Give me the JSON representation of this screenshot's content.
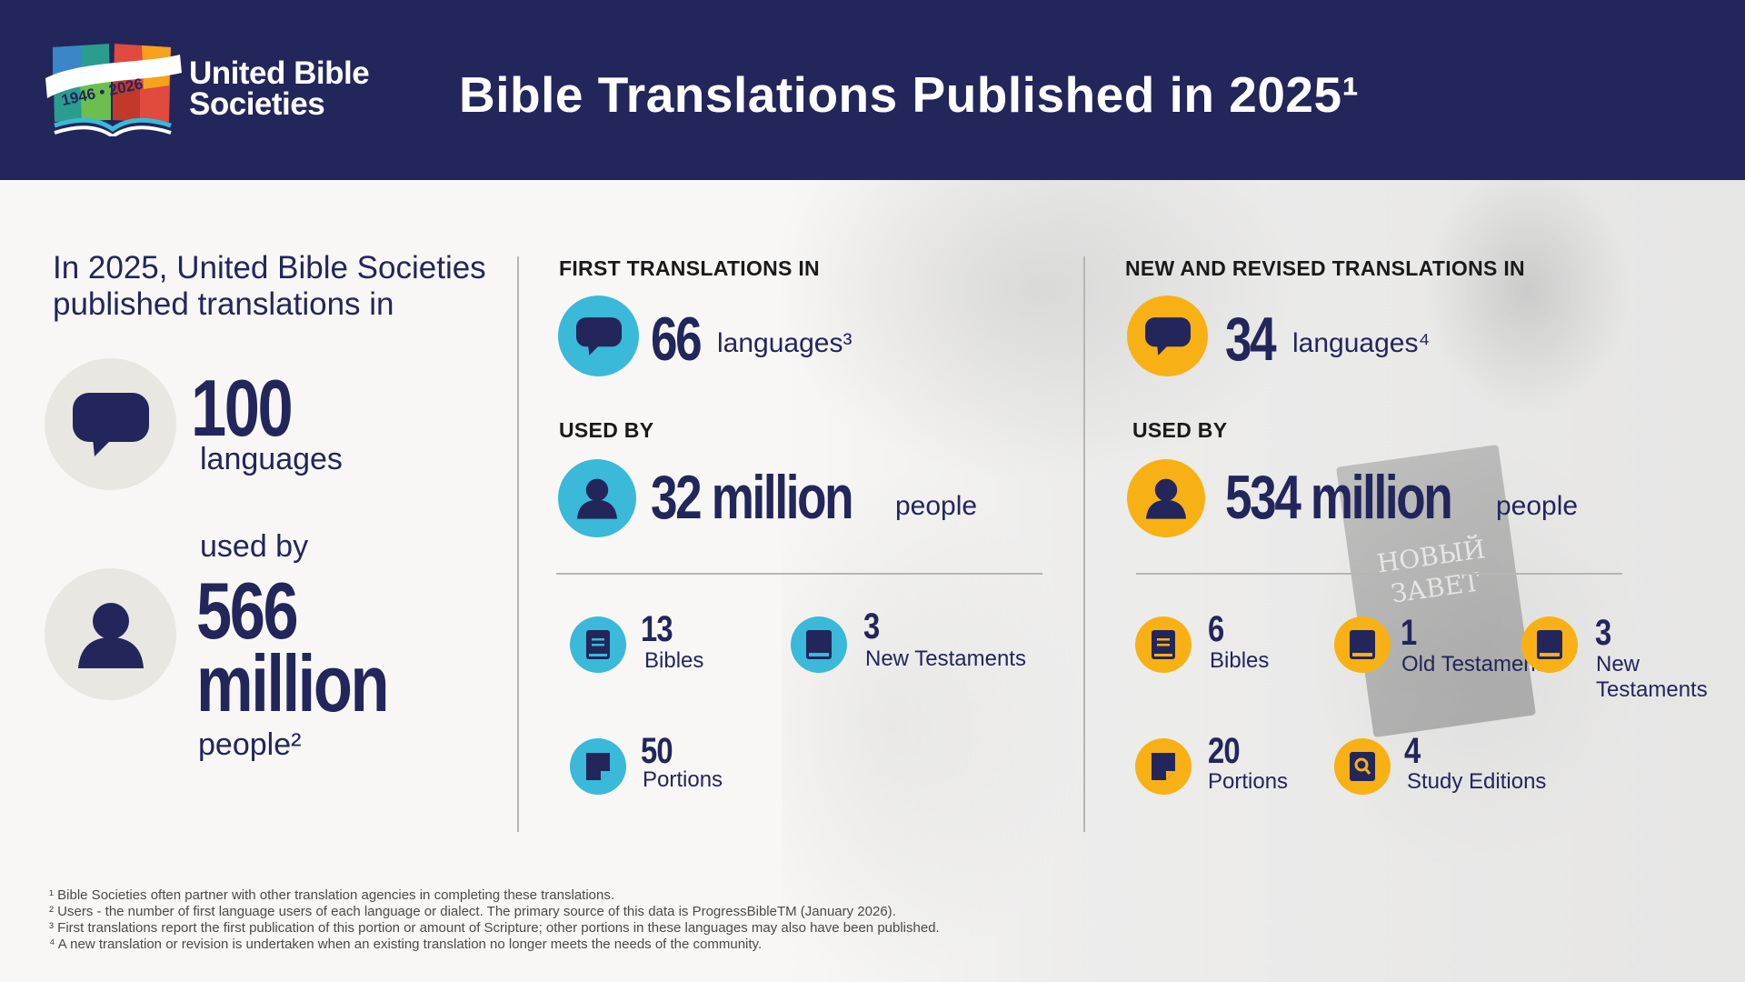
{
  "header": {
    "logo_line1": "United Bible",
    "logo_line2": "Societies",
    "logo_years": "1946 • 2026",
    "title": "Bible Translations Published in 2025¹"
  },
  "overview": {
    "intro": "In 2025, United Bible Societies published translations in",
    "languages_value": "100",
    "languages_label": "languages",
    "used_by": "used by",
    "people_value_1": "566",
    "people_value_2": "million",
    "people_label": "people²"
  },
  "first": {
    "heading": "FIRST TRANSLATIONS IN",
    "languages_value": "66",
    "languages_label": "languages³",
    "used_by": "USED BY",
    "people_value": "32 million",
    "people_label": "people",
    "items": [
      {
        "value": "13",
        "label": "Bibles",
        "icon": "bible-icon"
      },
      {
        "value": "3",
        "label": "New Testaments",
        "icon": "book-icon"
      },
      {
        "value": "50",
        "label": "Portions",
        "icon": "page-icon"
      }
    ]
  },
  "revised": {
    "heading": "NEW AND REVISED TRANSLATIONS IN",
    "languages_value": "34",
    "languages_label": "languages⁴",
    "used_by": "USED BY",
    "people_value": "534 million",
    "people_label": "people",
    "items": [
      {
        "value": "6",
        "label": "Bibles",
        "icon": "bible-icon"
      },
      {
        "value": "1",
        "label": "Old Testament",
        "icon": "book-icon"
      },
      {
        "value": "3",
        "label": "New Testaments",
        "icon": "book-icon"
      },
      {
        "value": "20",
        "label": "Portions",
        "icon": "page-icon"
      },
      {
        "value": "4",
        "label": "Study Editions",
        "icon": "magnifier-book-icon"
      }
    ]
  },
  "photo_book": {
    "line1": "НОВЫЙ",
    "line2": "ЗАВЕТ"
  },
  "footnotes": [
    "¹ Bible Societies often partner with other translation agencies in completing these translations.",
    "² Users - the number of first language users of each language or dialect. The primary source of this data is ProgressBibleTM (January 2026).",
    "³ First translations report the first publication of this portion or amount of Scripture; other portions in these languages may also have been published.",
    "⁴ A new translation or revision is undertaken when an existing translation no longer meets the needs of the community."
  ],
  "colors": {
    "navy": "#23265b",
    "blue": "#3ab9d9",
    "gold": "#f8b114",
    "grey_circle": "#e9e7e1"
  }
}
